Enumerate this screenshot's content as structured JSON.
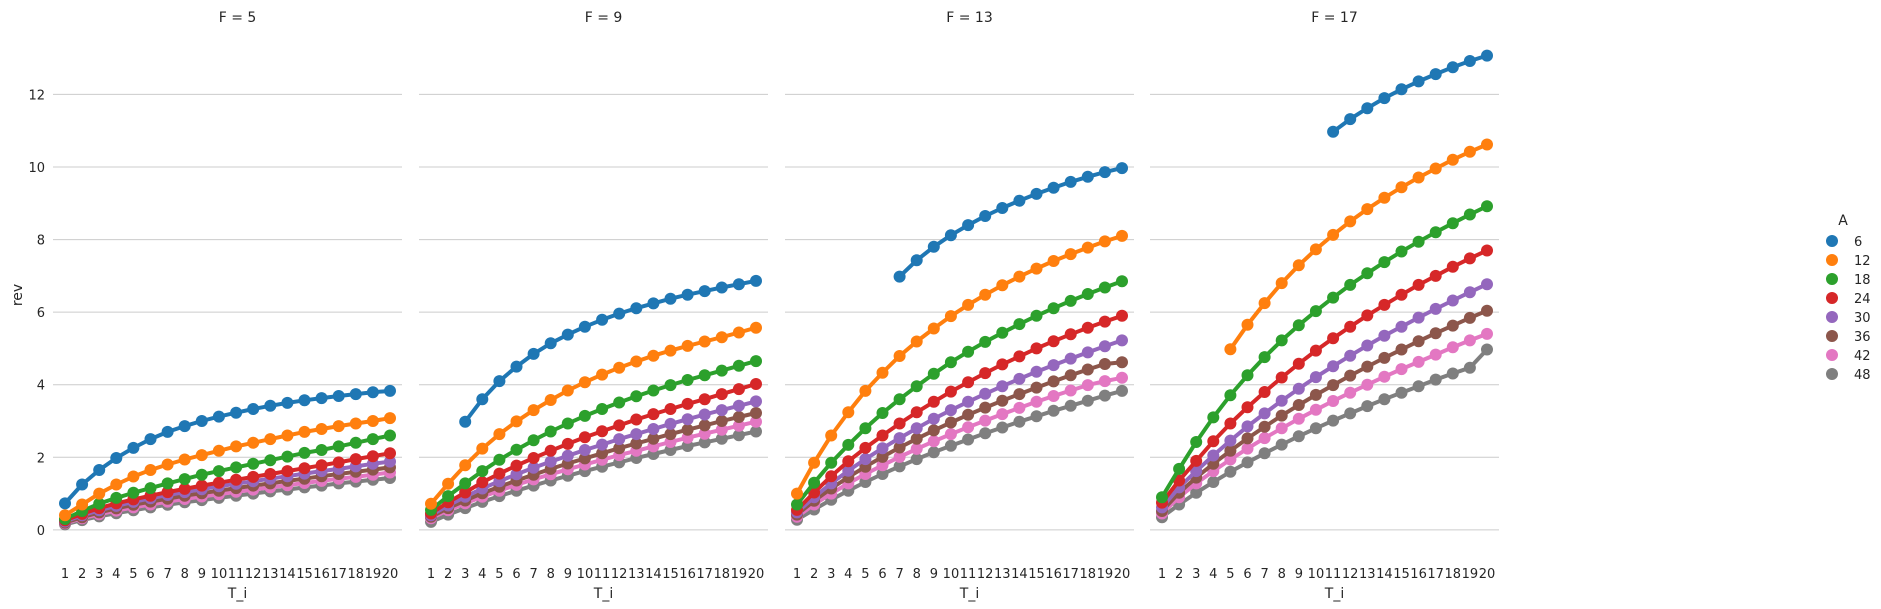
{
  "chart_data": {
    "type": "line",
    "xlabel": "T_i",
    "ylabel": "rev",
    "x": [
      1,
      2,
      3,
      4,
      5,
      6,
      7,
      8,
      9,
      10,
      11,
      12,
      13,
      14,
      15,
      16,
      17,
      18,
      19,
      20
    ],
    "yticks": [
      0,
      2,
      4,
      6,
      8,
      10,
      12
    ],
    "ylim": [
      -0.5,
      13.5
    ],
    "grid": "horizontal",
    "legend": {
      "title": "A",
      "placement": "right"
    },
    "series_meta": [
      {
        "name": "6",
        "color": "#1f77b4"
      },
      {
        "name": "12",
        "color": "#ff7f0e"
      },
      {
        "name": "18",
        "color": "#2ca02c"
      },
      {
        "name": "24",
        "color": "#d62728"
      },
      {
        "name": "30",
        "color": "#9467bd"
      },
      {
        "name": "36",
        "color": "#8c564b"
      },
      {
        "name": "42",
        "color": "#e377c2"
      },
      {
        "name": "48",
        "color": "#7f7f7f"
      }
    ],
    "panels": [
      {
        "title": "F = 5",
        "series": [
          {
            "name": "6",
            "values": [
              0.73,
              1.25,
              1.65,
              1.98,
              2.26,
              2.5,
              2.7,
              2.86,
              3.0,
              3.12,
              3.23,
              3.33,
              3.42,
              3.5,
              3.57,
              3.63,
              3.69,
              3.74,
              3.79,
              3.83
            ]
          },
          {
            "name": "12",
            "values": [
              0.4,
              0.7,
              1.0,
              1.25,
              1.47,
              1.65,
              1.8,
              1.94,
              2.06,
              2.18,
              2.3,
              2.4,
              2.5,
              2.6,
              2.7,
              2.78,
              2.86,
              2.93,
              3.0,
              3.08
            ]
          },
          {
            "name": "18",
            "values": [
              0.3,
              0.52,
              0.72,
              0.88,
              1.02,
              1.15,
              1.28,
              1.4,
              1.52,
              1.62,
              1.72,
              1.82,
              1.92,
              2.02,
              2.12,
              2.2,
              2.3,
              2.4,
              2.5,
              2.6
            ]
          },
          {
            "name": "24",
            "values": [
              0.26,
              0.44,
              0.6,
              0.73,
              0.84,
              0.94,
              1.04,
              1.13,
              1.22,
              1.3,
              1.38,
              1.46,
              1.54,
              1.62,
              1.7,
              1.78,
              1.86,
              1.95,
              2.03,
              2.11
            ]
          },
          {
            "name": "30",
            "values": [
              0.23,
              0.4,
              0.54,
              0.66,
              0.77,
              0.87,
              0.96,
              1.04,
              1.12,
              1.2,
              1.27,
              1.34,
              1.41,
              1.48,
              1.55,
              1.62,
              1.68,
              1.75,
              1.82,
              1.88
            ]
          },
          {
            "name": "36",
            "values": [
              0.2,
              0.35,
              0.48,
              0.59,
              0.69,
              0.78,
              0.86,
              0.94,
              1.01,
              1.08,
              1.15,
              1.22,
              1.28,
              1.35,
              1.41,
              1.48,
              1.54,
              1.6,
              1.66,
              1.72
            ]
          },
          {
            "name": "42",
            "values": [
              0.18,
              0.32,
              0.43,
              0.53,
              0.62,
              0.7,
              0.78,
              0.85,
              0.92,
              0.98,
              1.05,
              1.11,
              1.17,
              1.23,
              1.29,
              1.35,
              1.41,
              1.46,
              1.52,
              1.58
            ]
          },
          {
            "name": "48",
            "values": [
              0.15,
              0.27,
              0.37,
              0.46,
              0.54,
              0.62,
              0.69,
              0.76,
              0.82,
              0.88,
              0.94,
              1.0,
              1.06,
              1.11,
              1.17,
              1.22,
              1.28,
              1.33,
              1.38,
              1.43
            ]
          }
        ]
      },
      {
        "title": "F = 9",
        "series": [
          {
            "name": "6",
            "values": [
              null,
              null,
              2.98,
              3.6,
              4.1,
              4.5,
              4.85,
              5.14,
              5.38,
              5.6,
              5.79,
              5.96,
              6.11,
              6.24,
              6.37,
              6.48,
              6.58,
              6.68,
              6.77,
              6.86
            ]
          },
          {
            "name": "12",
            "values": [
              0.72,
              1.27,
              1.78,
              2.24,
              2.64,
              2.99,
              3.3,
              3.58,
              3.84,
              4.07,
              4.28,
              4.47,
              4.64,
              4.8,
              4.94,
              5.07,
              5.19,
              5.31,
              5.44,
              5.57
            ]
          },
          {
            "name": "18",
            "values": [
              0.55,
              0.93,
              1.28,
              1.62,
              1.93,
              2.21,
              2.47,
              2.71,
              2.93,
              3.14,
              3.33,
              3.51,
              3.68,
              3.84,
              3.99,
              4.13,
              4.26,
              4.39,
              4.52,
              4.65
            ]
          },
          {
            "name": "24",
            "values": [
              0.45,
              0.76,
              1.03,
              1.31,
              1.55,
              1.77,
              1.98,
              2.18,
              2.37,
              2.55,
              2.72,
              2.88,
              3.04,
              3.19,
              3.33,
              3.47,
              3.6,
              3.74,
              3.88,
              4.02
            ]
          },
          {
            "name": "30",
            "values": [
              0.4,
              0.67,
              0.91,
              1.14,
              1.34,
              1.53,
              1.71,
              1.88,
              2.04,
              2.2,
              2.35,
              2.5,
              2.64,
              2.78,
              2.92,
              3.05,
              3.18,
              3.3,
              3.42,
              3.54
            ]
          },
          {
            "name": "36",
            "values": [
              0.36,
              0.6,
              0.81,
              1.01,
              1.19,
              1.36,
              1.52,
              1.68,
              1.83,
              1.97,
              2.11,
              2.25,
              2.38,
              2.51,
              2.64,
              2.76,
              2.88,
              3.0,
              3.11,
              3.22
            ]
          },
          {
            "name": "42",
            "values": [
              0.32,
              0.54,
              0.73,
              0.91,
              1.08,
              1.24,
              1.39,
              1.53,
              1.67,
              1.8,
              1.93,
              2.06,
              2.18,
              2.3,
              2.42,
              2.54,
              2.65,
              2.76,
              2.87,
              2.98
            ]
          },
          {
            "name": "48",
            "values": [
              0.22,
              0.42,
              0.6,
              0.77,
              0.93,
              1.08,
              1.22,
              1.36,
              1.49,
              1.62,
              1.74,
              1.86,
              1.98,
              2.09,
              2.2,
              2.31,
              2.41,
              2.51,
              2.61,
              2.71
            ]
          }
        ]
      },
      {
        "title": "F = 13",
        "series": [
          {
            "name": "6",
            "values": [
              null,
              null,
              null,
              null,
              null,
              null,
              6.98,
              7.43,
              7.8,
              8.12,
              8.4,
              8.65,
              8.87,
              9.07,
              9.26,
              9.43,
              9.59,
              9.73,
              9.86,
              9.97
            ]
          },
          {
            "name": "12",
            "values": [
              1.0,
              1.85,
              2.6,
              3.24,
              3.83,
              4.33,
              4.79,
              5.19,
              5.55,
              5.89,
              6.2,
              6.48,
              6.74,
              6.98,
              7.2,
              7.41,
              7.6,
              7.78,
              7.95,
              8.1
            ]
          },
          {
            "name": "18",
            "values": [
              0.7,
              1.3,
              1.85,
              2.34,
              2.8,
              3.22,
              3.6,
              3.96,
              4.3,
              4.62,
              4.91,
              5.18,
              5.43,
              5.67,
              5.9,
              6.11,
              6.31,
              6.5,
              6.68,
              6.85
            ]
          },
          {
            "name": "24",
            "values": [
              0.55,
              1.03,
              1.48,
              1.89,
              2.26,
              2.6,
              2.93,
              3.24,
              3.53,
              3.81,
              4.07,
              4.32,
              4.56,
              4.78,
              5.0,
              5.2,
              5.39,
              5.57,
              5.74,
              5.9
            ]
          },
          {
            "name": "30",
            "values": [
              0.48,
              0.9,
              1.28,
              1.63,
              1.95,
              2.25,
              2.53,
              2.8,
              3.06,
              3.3,
              3.53,
              3.75,
              3.96,
              4.16,
              4.36,
              4.54,
              4.72,
              4.89,
              5.06,
              5.22
            ]
          },
          {
            "name": "36",
            "values": [
              0.42,
              0.8,
              1.14,
              1.45,
              1.74,
              2.01,
              2.27,
              2.51,
              2.74,
              2.96,
              3.17,
              3.37,
              3.56,
              3.74,
              3.92,
              4.09,
              4.26,
              4.42,
              4.57,
              4.62
            ]
          },
          {
            "name": "42",
            "values": [
              0.36,
              0.7,
              1.0,
              1.28,
              1.54,
              1.78,
              2.01,
              2.23,
              2.44,
              2.64,
              2.83,
              3.01,
              3.19,
              3.36,
              3.53,
              3.69,
              3.84,
              3.99,
              4.1,
              4.19
            ]
          },
          {
            "name": "48",
            "values": [
              0.28,
              0.56,
              0.83,
              1.08,
              1.32,
              1.54,
              1.75,
              1.95,
              2.14,
              2.32,
              2.49,
              2.66,
              2.82,
              2.98,
              3.13,
              3.28,
              3.42,
              3.56,
              3.7,
              3.83
            ]
          }
        ]
      },
      {
        "title": "F = 17",
        "series": [
          {
            "name": "6",
            "values": [
              null,
              null,
              null,
              null,
              null,
              null,
              null,
              null,
              null,
              null,
              10.97,
              11.32,
              11.62,
              11.9,
              12.14,
              12.36,
              12.56,
              12.75,
              12.92,
              13.07
            ]
          },
          {
            "name": "12",
            "values": [
              null,
              null,
              null,
              null,
              4.98,
              5.65,
              6.25,
              6.8,
              7.29,
              7.73,
              8.13,
              8.5,
              8.84,
              9.15,
              9.44,
              9.71,
              9.96,
              10.2,
              10.42,
              10.62
            ]
          },
          {
            "name": "18",
            "values": [
              0.9,
              1.68,
              2.42,
              3.1,
              3.71,
              4.26,
              4.76,
              5.22,
              5.64,
              6.03,
              6.4,
              6.75,
              7.07,
              7.38,
              7.67,
              7.94,
              8.2,
              8.45,
              8.69,
              8.92
            ]
          },
          {
            "name": "24",
            "values": [
              0.75,
              1.36,
              1.9,
              2.44,
              2.93,
              3.38,
              3.8,
              4.2,
              4.58,
              4.94,
              5.28,
              5.6,
              5.91,
              6.2,
              6.48,
              6.75,
              7.0,
              7.25,
              7.48,
              7.7
            ]
          },
          {
            "name": "30",
            "values": [
              0.62,
              1.17,
              1.62,
              2.05,
              2.46,
              2.85,
              3.21,
              3.56,
              3.89,
              4.21,
              4.51,
              4.8,
              5.08,
              5.35,
              5.6,
              5.85,
              6.09,
              6.32,
              6.55,
              6.77
            ]
          },
          {
            "name": "36",
            "values": [
              0.52,
              1.02,
              1.44,
              1.82,
              2.18,
              2.52,
              2.84,
              3.15,
              3.44,
              3.72,
              3.99,
              4.25,
              4.5,
              4.74,
              4.97,
              5.2,
              5.42,
              5.63,
              5.84,
              6.04
            ]
          },
          {
            "name": "42",
            "values": [
              0.45,
              0.9,
              1.28,
              1.62,
              1.94,
              2.24,
              2.53,
              2.8,
              3.06,
              3.31,
              3.55,
              3.78,
              4.0,
              4.22,
              4.43,
              4.63,
              4.83,
              5.03,
              5.22,
              5.4
            ]
          },
          {
            "name": "48",
            "values": [
              0.35,
              0.7,
              1.02,
              1.32,
              1.6,
              1.86,
              2.11,
              2.35,
              2.58,
              2.8,
              3.01,
              3.21,
              3.41,
              3.6,
              3.78,
              3.96,
              4.14,
              4.31,
              4.47,
              4.97
            ]
          }
        ]
      }
    ]
  }
}
